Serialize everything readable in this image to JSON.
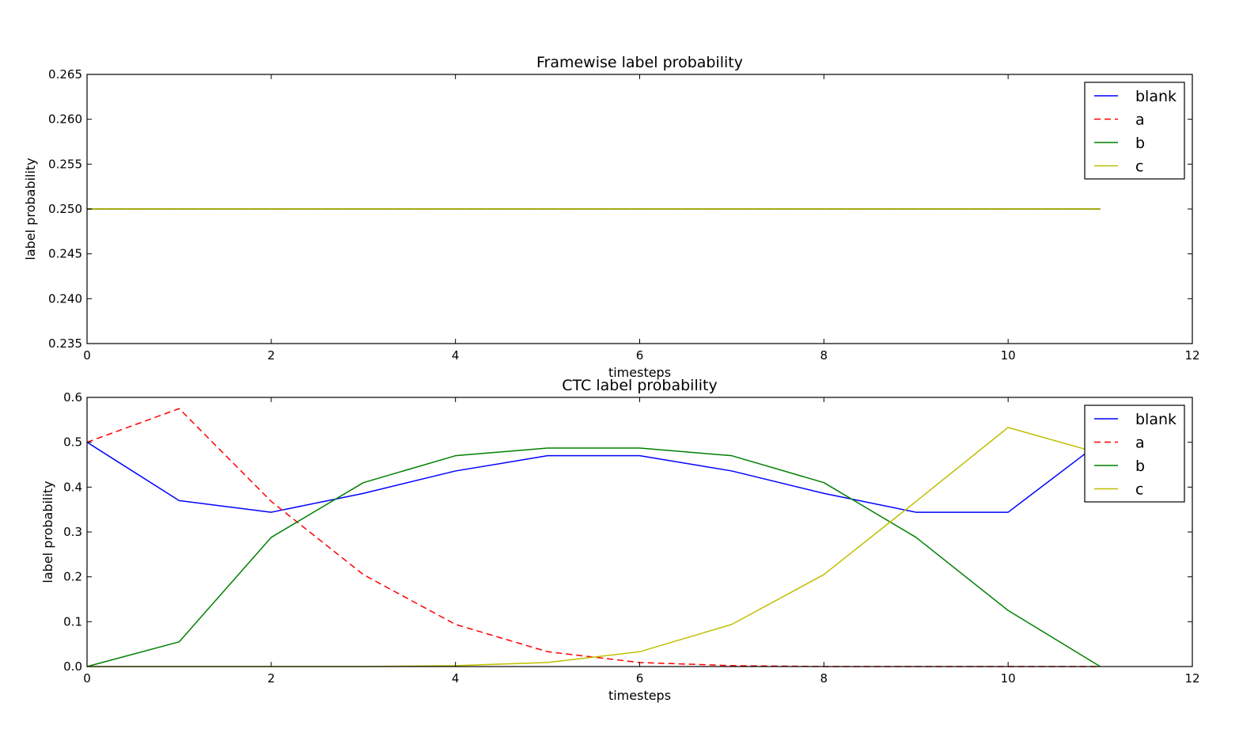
{
  "chart_data": [
    {
      "type": "line",
      "title": "Framewise label probability",
      "xlabel": "timesteps",
      "ylabel": "label probability",
      "xlim": [
        0,
        12
      ],
      "ylim": [
        0.235,
        0.265
      ],
      "xticks": [
        0,
        2,
        4,
        6,
        8,
        10,
        12
      ],
      "yticks": [
        0.235,
        0.24,
        0.245,
        0.25,
        0.255,
        0.26,
        0.265
      ],
      "ytick_labels": [
        "0.235",
        "0.240",
        "0.245",
        "0.250",
        "0.255",
        "0.260",
        "0.265"
      ],
      "legend_position": "top-right",
      "x": [
        0,
        1,
        2,
        3,
        4,
        5,
        6,
        7,
        8,
        9,
        10,
        11
      ],
      "series": [
        {
          "name": "blank",
          "color": "#0000ff",
          "dash": "solid",
          "values": [
            0.25,
            0.25,
            0.25,
            0.25,
            0.25,
            0.25,
            0.25,
            0.25,
            0.25,
            0.25,
            0.25,
            0.25
          ]
        },
        {
          "name": "a",
          "color": "#ff0000",
          "dash": "dashed",
          "values": [
            0.25,
            0.25,
            0.25,
            0.25,
            0.25,
            0.25,
            0.25,
            0.25,
            0.25,
            0.25,
            0.25,
            0.25
          ]
        },
        {
          "name": "b",
          "color": "#008000",
          "dash": "solid",
          "values": [
            0.25,
            0.25,
            0.25,
            0.25,
            0.25,
            0.25,
            0.25,
            0.25,
            0.25,
            0.25,
            0.25,
            0.25
          ]
        },
        {
          "name": "c",
          "color": "#bfbf00",
          "dash": "solid",
          "values": [
            0.25,
            0.25,
            0.25,
            0.25,
            0.25,
            0.25,
            0.25,
            0.25,
            0.25,
            0.25,
            0.25,
            0.25
          ]
        }
      ]
    },
    {
      "type": "line",
      "title": "CTC label probability",
      "xlabel": "timesteps",
      "ylabel": "label probability",
      "xlim": [
        0,
        12
      ],
      "ylim": [
        0,
        0.6
      ],
      "xticks": [
        0,
        2,
        4,
        6,
        8,
        10,
        12
      ],
      "yticks": [
        0,
        0.1,
        0.2,
        0.3,
        0.4,
        0.5,
        0.6
      ],
      "ytick_labels": [
        "0.0",
        "0.1",
        "0.2",
        "0.3",
        "0.4",
        "0.5",
        "0.6"
      ],
      "legend_position": "top-right",
      "x": [
        0,
        1,
        2,
        3,
        4,
        5,
        6,
        7,
        8,
        9,
        10,
        11
      ],
      "series": [
        {
          "name": "blank",
          "color": "#0000ff",
          "dash": "solid",
          "values": [
            0.5,
            0.37,
            0.344,
            0.386,
            0.436,
            0.47,
            0.47,
            0.436,
            0.386,
            0.344,
            0.344,
            0.5
          ]
        },
        {
          "name": "a",
          "color": "#ff0000",
          "dash": "dashed",
          "values": [
            0.5,
            0.575,
            0.368,
            0.205,
            0.094,
            0.033,
            0.009,
            0.002,
            0.0,
            0.0,
            0.0,
            0.0
          ]
        },
        {
          "name": "b",
          "color": "#008000",
          "dash": "solid",
          "values": [
            0.0,
            0.055,
            0.288,
            0.41,
            0.47,
            0.487,
            0.487,
            0.47,
            0.41,
            0.288,
            0.125,
            0.0
          ]
        },
        {
          "name": "c",
          "color": "#bfbf00",
          "dash": "solid",
          "values": [
            0.0,
            0.0,
            0.0,
            0.0,
            0.002,
            0.009,
            0.033,
            0.094,
            0.205,
            0.368,
            0.533,
            0.475
          ]
        }
      ]
    }
  ]
}
